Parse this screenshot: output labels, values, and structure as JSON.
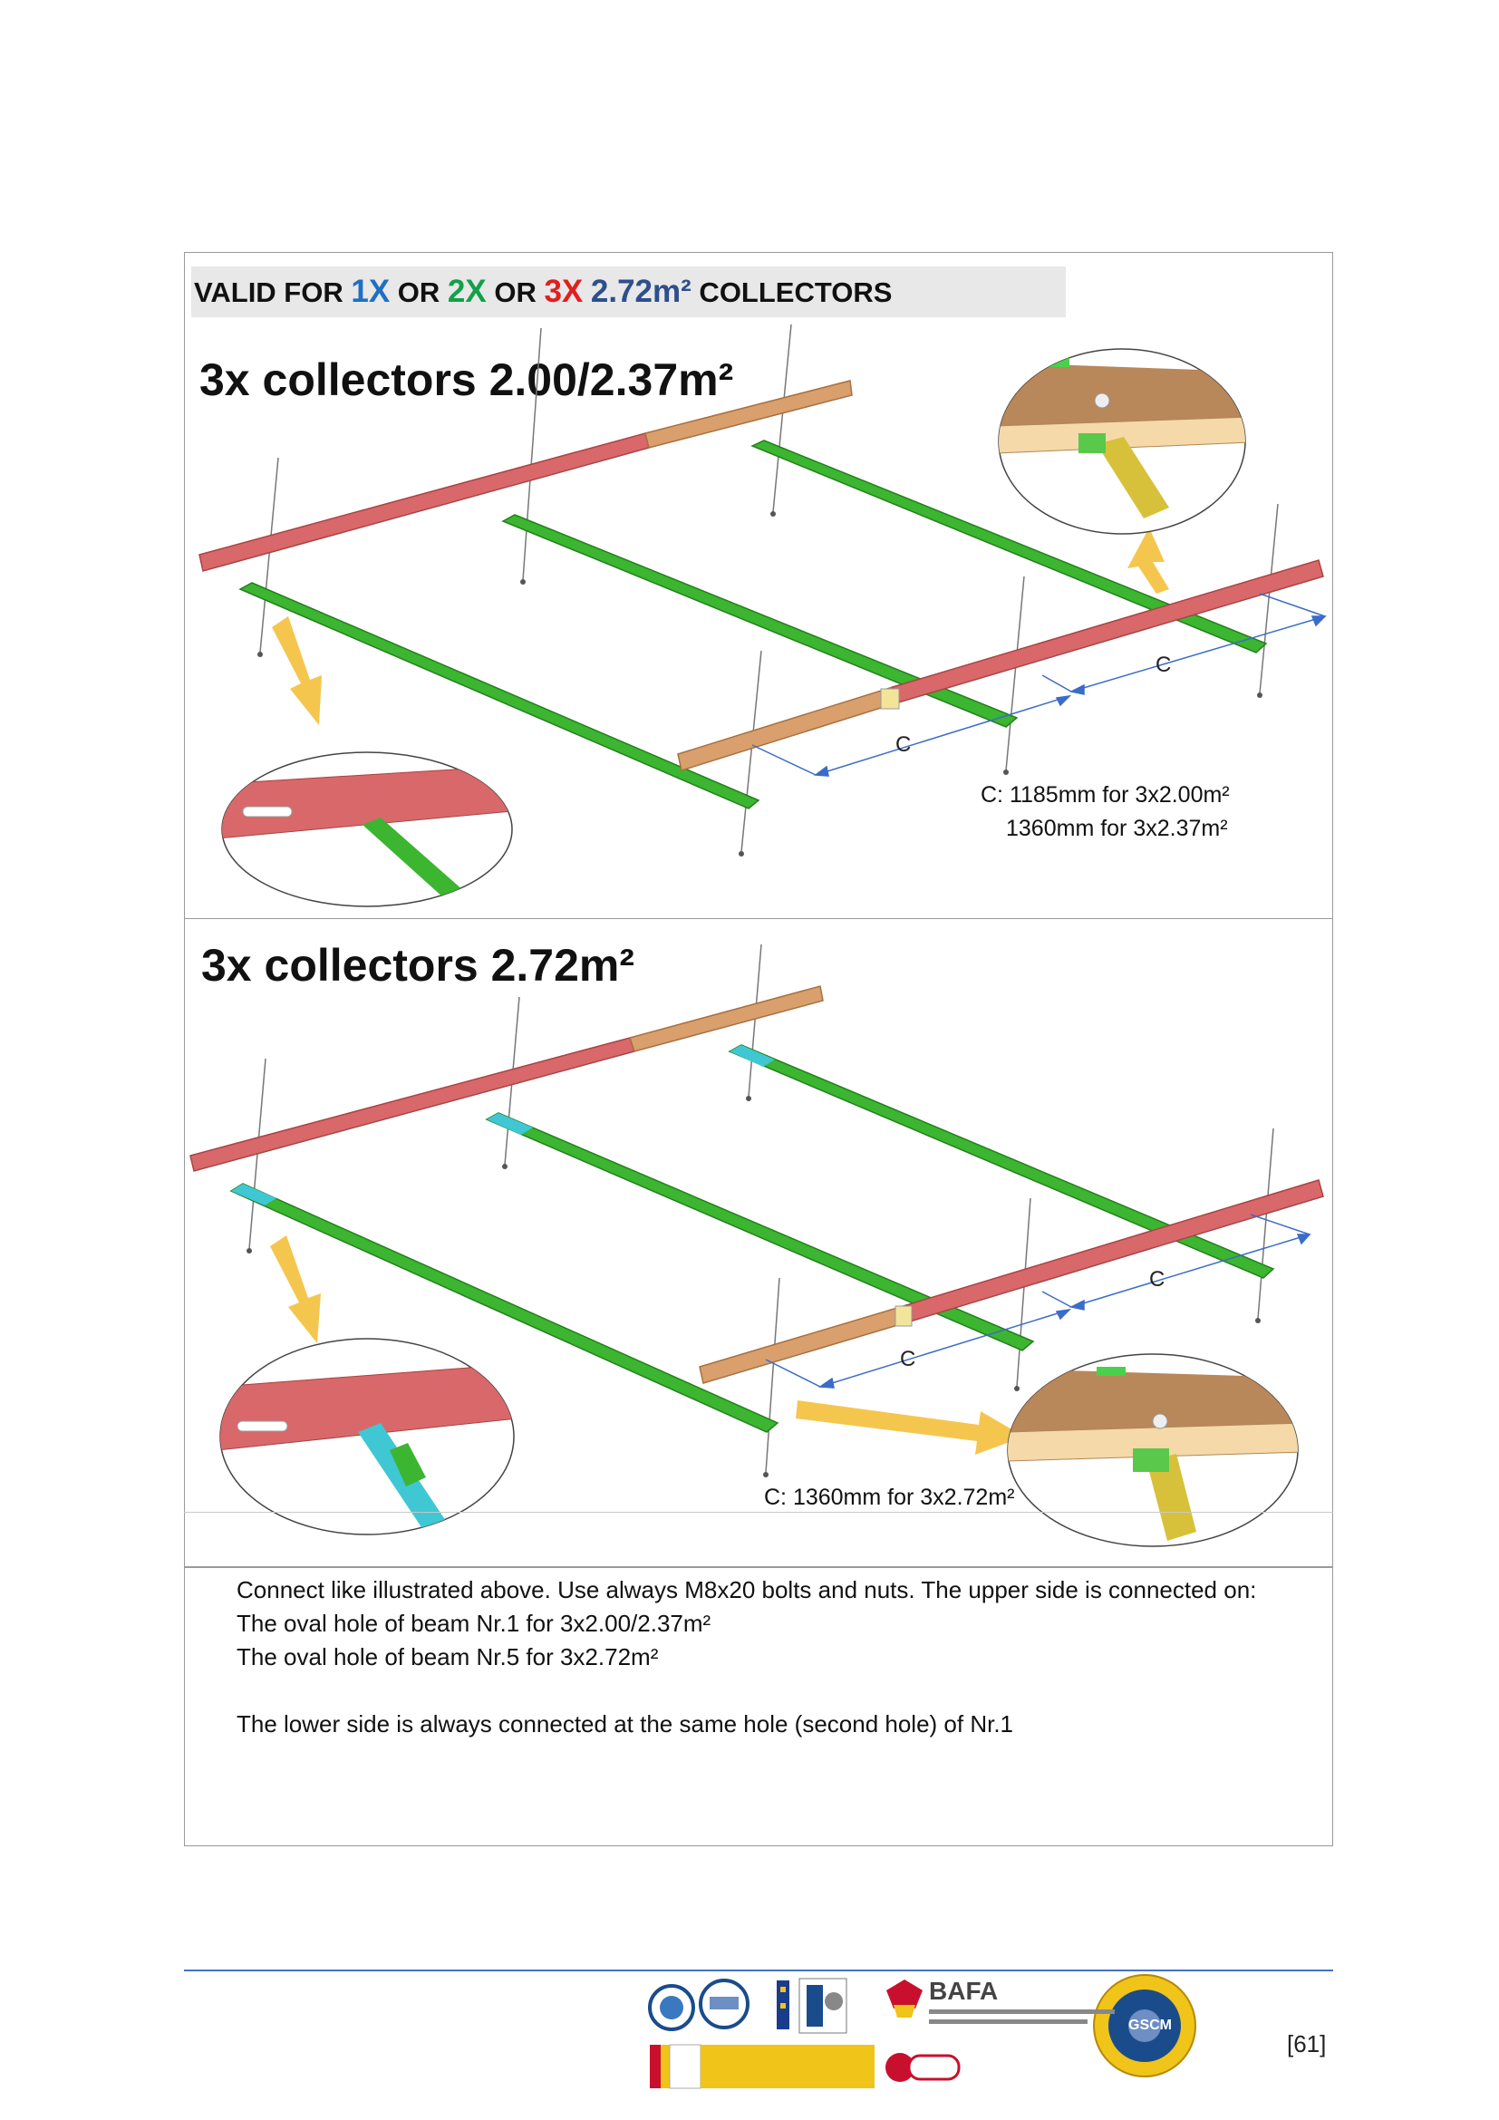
{
  "banner": {
    "prefix": "VALID FOR ",
    "opt1": "1X",
    "or1": " OR ",
    "opt2": "2X",
    "or2": " OR ",
    "opt3": "3X",
    "area": "2.72m²",
    "suffix": " COLLECTORS"
  },
  "section1": {
    "title": "3x collectors 2.00/2.37m²",
    "dim_label": "C",
    "note_line1": "C: 1185mm for 3x2.00m²",
    "note_line2": "1360mm for 3x2.37m²"
  },
  "section2": {
    "title": "3x collectors 2.72m²",
    "dim_label": "C",
    "note": "C: 1360mm for 3x2.72m²"
  },
  "instructions": {
    "line1": "Connect like illustrated above. Use always M8x20 bolts and nuts. The upper side is connected on:",
    "line2": "The oval hole of beam Nr.1 for 3x2.00/2.37m²",
    "line3": "The oval hole of beam Nr.5 for 3x2.72m²",
    "line4": "The lower side is always connected at the same hole (second hole) of Nr.1"
  },
  "footer": {
    "page_number": "[61]",
    "logo_bafa": "BAFA",
    "logo_gscm": "GSCM"
  },
  "colors": {
    "green_rail": "#3cb531",
    "red_beam": "#d9686a",
    "tan_beam": "#d9a06e",
    "cyan_part": "#3fc7d4",
    "arrow_yellow": "#f5c64e",
    "dim_blue": "#3a6cc8"
  }
}
